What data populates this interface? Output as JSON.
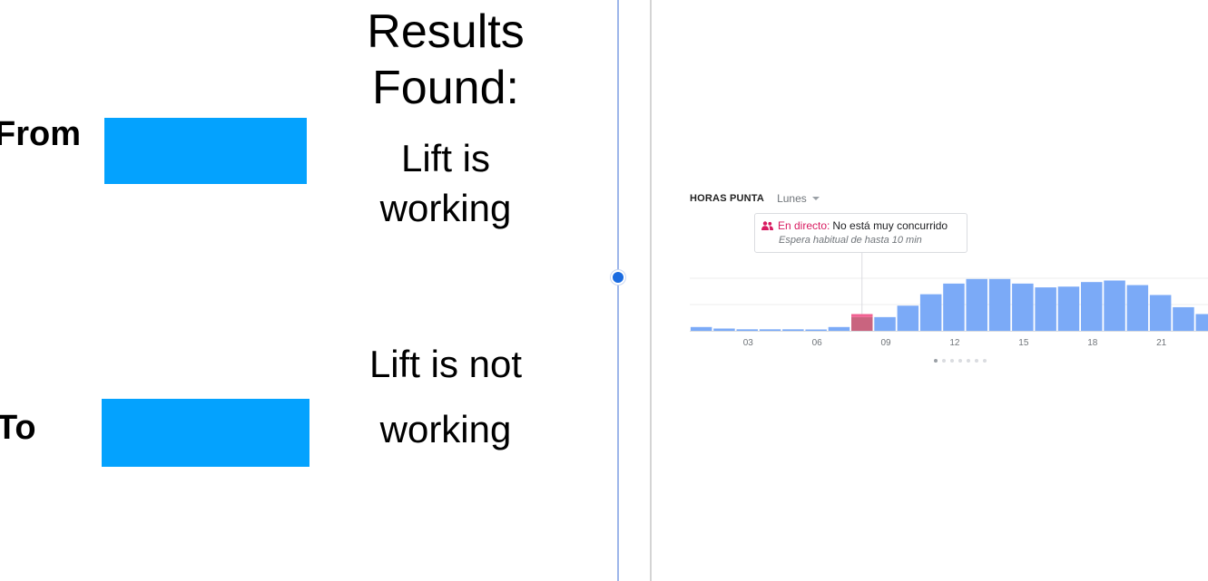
{
  "form": {
    "from_label": "From",
    "to_label": "To",
    "from_value": "",
    "to_value": "",
    "field_color": "#04a2fe"
  },
  "results": {
    "title_line1": "Results",
    "title_line2": "Found:",
    "working_line1": "Lift is",
    "working_line2": "working",
    "not_working_line1": "Lift is not",
    "not_working_line2": "working"
  },
  "popular_times": {
    "title": "HORAS PUNTA",
    "day": "Lunes",
    "live_prefix": "En directo:",
    "live_status": "No está muy concurrido",
    "wait_note": "Espera habitual de hasta 10 min",
    "live_color": "#d81b60",
    "bar_color": "#7baaf7",
    "pages": 7,
    "active_page": 0
  },
  "chart_data": {
    "type": "bar",
    "x": [
      0,
      1,
      2,
      3,
      4,
      5,
      6,
      7,
      8,
      9,
      10,
      11,
      12,
      13,
      14,
      15,
      16,
      17,
      18,
      19,
      20,
      21,
      22
    ],
    "tick_labels": [
      "03",
      "06",
      "09",
      "12",
      "15",
      "18",
      "21"
    ],
    "tick_hours": [
      3,
      6,
      9,
      12,
      15,
      18,
      21
    ],
    "values": [
      5,
      3,
      2,
      2,
      2,
      1,
      5,
      18,
      18,
      33,
      48,
      62,
      68,
      68,
      62,
      57,
      58,
      64,
      66,
      60,
      47,
      31,
      22
    ],
    "live_hour": 7,
    "live_value": 22,
    "now_hour": 7,
    "ylim": [
      0,
      100
    ],
    "grid": true
  }
}
